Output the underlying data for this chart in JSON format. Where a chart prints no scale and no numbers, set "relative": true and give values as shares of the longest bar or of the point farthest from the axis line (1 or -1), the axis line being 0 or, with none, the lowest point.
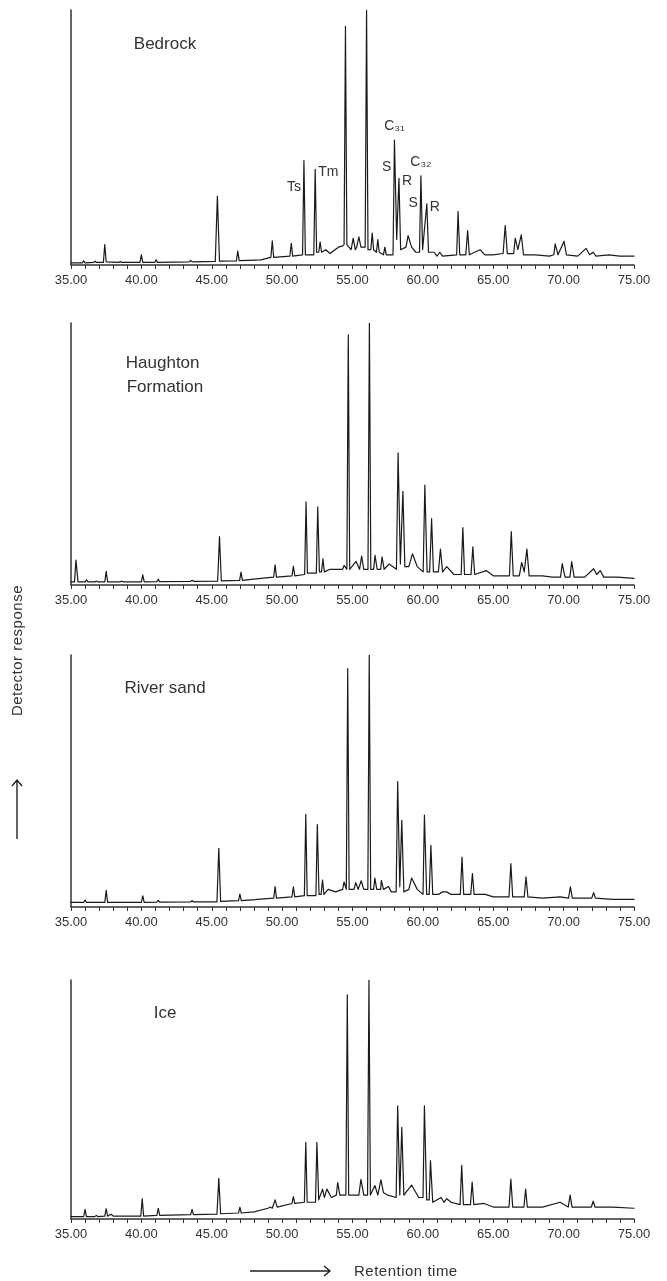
{
  "chart_data": [
    {
      "type": "line",
      "title": "Bedrock",
      "relative": true,
      "color": "#1a1a1a",
      "xlim": [
        35,
        75
      ],
      "xticks": [
        {
          "value": 35,
          "label": "35.00"
        },
        {
          "value": 36,
          "label": null
        },
        {
          "value": 37,
          "label": null
        },
        {
          "value": 38,
          "label": null
        },
        {
          "value": 39,
          "label": null
        },
        {
          "value": 40,
          "label": "40.00"
        },
        {
          "value": 41,
          "label": null
        },
        {
          "value": 42,
          "label": null
        },
        {
          "value": 43,
          "label": null
        },
        {
          "value": 44,
          "label": null
        },
        {
          "value": 45,
          "label": "45.00"
        },
        {
          "value": 46,
          "label": null
        },
        {
          "value": 47,
          "label": null
        },
        {
          "value": 48,
          "label": null
        },
        {
          "value": 49,
          "label": null
        },
        {
          "value": 50,
          "label": "50.00"
        },
        {
          "value": 51,
          "label": null
        },
        {
          "value": 52,
          "label": null
        },
        {
          "value": 53,
          "label": null
        },
        {
          "value": 54,
          "label": null
        },
        {
          "value": 55,
          "label": "55.00"
        },
        {
          "value": 56,
          "label": null
        },
        {
          "value": 57,
          "label": null
        },
        {
          "value": 58,
          "label": null
        },
        {
          "value": 59,
          "label": null
        },
        {
          "value": 60,
          "label": "60.00"
        },
        {
          "value": 61,
          "label": null
        },
        {
          "value": 62,
          "label": null
        },
        {
          "value": 63,
          "label": null
        },
        {
          "value": 64,
          "label": null
        },
        {
          "value": 65,
          "label": "65.00"
        },
        {
          "value": 66,
          "label": null
        },
        {
          "value": 67,
          "label": null
        },
        {
          "value": 68,
          "label": null
        },
        {
          "value": 69,
          "label": null
        },
        {
          "value": 70,
          "label": "70.00"
        },
        {
          "value": 71,
          "label": null
        },
        {
          "value": 72,
          "label": null
        },
        {
          "value": 73,
          "label": null
        },
        {
          "value": 74,
          "label": null
        },
        {
          "value": 75,
          "label": "75.00"
        }
      ],
      "x": [
        35,
        35.8,
        35.9,
        36,
        36.6,
        36.7,
        36.8,
        37.3,
        37.4,
        37.5,
        38.4,
        38.5,
        38.6,
        39.9,
        40,
        40.1,
        40.95,
        41.05,
        41.15,
        43.4,
        43.5,
        43.6,
        45.25,
        45.4,
        45.55,
        46.75,
        46.85,
        46.95,
        48.5,
        49.2,
        49.3,
        49.4,
        50.55,
        50.65,
        50.75,
        51.45,
        51.55,
        51.65,
        52.25,
        52.35,
        52.45,
        52.6,
        52.7,
        52.8,
        53.1,
        53.4,
        54,
        54.3,
        54.4,
        54.5,
        54.6,
        54.9,
        55.05,
        55.2,
        55.3,
        55.45,
        55.6,
        55.9,
        56,
        56.1,
        56.3,
        56.4,
        56.5,
        56.7,
        56.8,
        56.9,
        57.2,
        57.3,
        57.4,
        57.88,
        57.98,
        58.14,
        58.3,
        58.42,
        58.8,
        58.95,
        59.2,
        59.5,
        59.76,
        59.86,
        59.98,
        60.28,
        60.4,
        60.8,
        61,
        61.2,
        61.4,
        62.4,
        62.5,
        62.62,
        63.05,
        63.18,
        63.3,
        64.06,
        64.4,
        65,
        65.7,
        65.85,
        66,
        66.45,
        66.56,
        66.75,
        66.99,
        67.15,
        68,
        69,
        69.3,
        69.4,
        69.6,
        70.03,
        70.2,
        71,
        71.6,
        71.85,
        72.1,
        72.3,
        73.2,
        74,
        75
      ],
      "values": [
        0.008,
        0.008,
        0.016,
        0.008,
        0.01,
        0.015,
        0.01,
        0.01,
        0.08,
        0.012,
        0.01,
        0.014,
        0.01,
        0.01,
        0.04,
        0.01,
        0.01,
        0.02,
        0.01,
        0.012,
        0.018,
        0.012,
        0.014,
        0.27,
        0.015,
        0.016,
        0.055,
        0.017,
        0.02,
        0.03,
        0.095,
        0.03,
        0.035,
        0.085,
        0.035,
        0.04,
        0.41,
        0.04,
        0.04,
        0.375,
        0.05,
        0.05,
        0.09,
        0.05,
        0.06,
        0.045,
        0.07,
        0.075,
        0.08,
        0.936,
        0.08,
        0.06,
        0.105,
        0.06,
        0.07,
        0.11,
        0.07,
        0.07,
        1,
        0.06,
        0.06,
        0.125,
        0.06,
        0.05,
        0.1,
        0.05,
        0.04,
        0.07,
        0.04,
        0.04,
        0.49,
        0.1,
        0.34,
        0.06,
        0.07,
        0.115,
        0.07,
        0.05,
        0.05,
        0.35,
        0.06,
        0.24,
        0.05,
        0.05,
        0.035,
        0.05,
        0.035,
        0.04,
        0.21,
        0.04,
        0.04,
        0.135,
        0.04,
        0.06,
        0.04,
        0.04,
        0.045,
        0.155,
        0.045,
        0.045,
        0.105,
        0.06,
        0.118,
        0.04,
        0.04,
        0.035,
        0.04,
        0.083,
        0.04,
        0.093,
        0.04,
        0.035,
        0.065,
        0.04,
        0.05,
        0.035,
        0.04,
        0.035,
        0.035
      ],
      "annotations": [
        {
          "text": "Ts",
          "x": 51.55,
          "y": 0.41
        },
        {
          "text": "Tm",
          "x": 52.35,
          "y": 0.375
        },
        {
          "text": "C₃₁",
          "x": 57.98,
          "y": 0.49
        },
        {
          "text": "S",
          "x": 57.98,
          "y": 0.49
        },
        {
          "text": "R",
          "x": 58.3,
          "y": 0.34
        },
        {
          "text": "C₃₂",
          "x": 59.86,
          "y": 0.35
        },
        {
          "text": "S",
          "x": 59.86,
          "y": 0.35
        },
        {
          "text": "R",
          "x": 60.28,
          "y": 0.24
        }
      ]
    },
    {
      "type": "line",
      "title": "Haughton Formation",
      "relative": true,
      "color": "#1a1a1a",
      "xlim": [
        35,
        75
      ],
      "xticks": [
        {
          "value": 35,
          "label": "35.00"
        },
        {
          "value": 36,
          "label": null
        },
        {
          "value": 37,
          "label": null
        },
        {
          "value": 38,
          "label": null
        },
        {
          "value": 39,
          "label": null
        },
        {
          "value": 40,
          "label": "40.00"
        },
        {
          "value": 41,
          "label": null
        },
        {
          "value": 42,
          "label": null
        },
        {
          "value": 43,
          "label": null
        },
        {
          "value": 44,
          "label": null
        },
        {
          "value": 45,
          "label": "45.00"
        },
        {
          "value": 46,
          "label": null
        },
        {
          "value": 47,
          "label": null
        },
        {
          "value": 48,
          "label": null
        },
        {
          "value": 49,
          "label": null
        },
        {
          "value": 50,
          "label": "50.00"
        },
        {
          "value": 51,
          "label": null
        },
        {
          "value": 52,
          "label": null
        },
        {
          "value": 53,
          "label": null
        },
        {
          "value": 54,
          "label": null
        },
        {
          "value": 55,
          "label": "55.00"
        },
        {
          "value": 56,
          "label": null
        },
        {
          "value": 57,
          "label": null
        },
        {
          "value": 58,
          "label": null
        },
        {
          "value": 59,
          "label": null
        },
        {
          "value": 60,
          "label": "60.00"
        },
        {
          "value": 61,
          "label": null
        },
        {
          "value": 62,
          "label": null
        },
        {
          "value": 63,
          "label": null
        },
        {
          "value": 64,
          "label": null
        },
        {
          "value": 65,
          "label": "65.00"
        },
        {
          "value": 66,
          "label": null
        },
        {
          "value": 67,
          "label": null
        },
        {
          "value": 68,
          "label": null
        },
        {
          "value": 69,
          "label": null
        },
        {
          "value": 70,
          "label": "70.00"
        },
        {
          "value": 71,
          "label": null
        },
        {
          "value": 72,
          "label": null
        },
        {
          "value": 73,
          "label": null
        },
        {
          "value": 74,
          "label": null
        },
        {
          "value": 75,
          "label": "75.00"
        }
      ],
      "x": [
        35,
        35.25,
        35.35,
        35.5,
        36,
        36.1,
        36.2,
        36.7,
        36.8,
        36.9,
        37.4,
        37.5,
        37.6,
        38.5,
        38.6,
        38.7,
        40,
        40.1,
        40.2,
        41.1,
        41.2,
        41.3,
        43.5,
        43.6,
        43.7,
        45.42,
        45.55,
        45.68,
        46.98,
        47.08,
        47.18,
        48.5,
        49.4,
        49.5,
        49.6,
        50.7,
        50.8,
        50.9,
        51.6,
        51.7,
        51.8,
        52.43,
        52.53,
        52.65,
        52.8,
        52.9,
        53,
        53.4,
        54,
        54.3,
        54.4,
        54.6,
        54.7,
        54.8,
        55.25,
        55.5,
        55.65,
        55.8,
        56.1,
        56.2,
        56.3,
        56.5,
        56.6,
        56.75,
        57,
        57.1,
        57.25,
        57.6,
        58.12,
        58.24,
        58.4,
        58.58,
        58.72,
        59,
        59.26,
        59.6,
        60.02,
        60.14,
        60.3,
        60.48,
        60.62,
        60.75,
        61.1,
        61.25,
        61.4,
        61.7,
        62.2,
        62.72,
        62.84,
        62.96,
        63.42,
        63.55,
        63.68,
        64.5,
        65,
        65.6,
        66.15,
        66.28,
        66.42,
        66.85,
        67.02,
        67.2,
        67.39,
        67.55,
        68.5,
        69.2,
        69.78,
        69.9,
        70.1,
        70.45,
        70.57,
        70.75,
        71.5,
        72.13,
        72.35,
        72.6,
        72.85,
        73.8,
        75
      ],
      "values": [
        0.012,
        0.012,
        0.095,
        0.012,
        0.012,
        0.02,
        0.012,
        0.012,
        0.015,
        0.012,
        0.012,
        0.052,
        0.012,
        0.012,
        0.015,
        0.012,
        0.012,
        0.039,
        0.012,
        0.013,
        0.022,
        0.013,
        0.014,
        0.018,
        0.014,
        0.015,
        0.185,
        0.016,
        0.018,
        0.049,
        0.018,
        0.025,
        0.03,
        0.077,
        0.03,
        0.035,
        0.071,
        0.035,
        0.04,
        0.317,
        0.045,
        0.045,
        0.298,
        0.05,
        0.05,
        0.1,
        0.05,
        0.06,
        0.06,
        0.06,
        0.075,
        0.06,
        0.955,
        0.06,
        0.09,
        0.06,
        0.11,
        0.06,
        0.06,
        1,
        0.06,
        0.06,
        0.113,
        0.06,
        0.06,
        0.107,
        0.06,
        0.08,
        0.06,
        0.504,
        0.08,
        0.357,
        0.07,
        0.07,
        0.119,
        0.07,
        0.05,
        0.381,
        0.05,
        0.05,
        0.253,
        0.05,
        0.05,
        0.137,
        0.05,
        0.07,
        0.04,
        0.04,
        0.219,
        0.04,
        0.04,
        0.146,
        0.04,
        0.055,
        0.035,
        0.035,
        0.035,
        0.204,
        0.035,
        0.035,
        0.086,
        0.05,
        0.137,
        0.035,
        0.035,
        0.03,
        0.03,
        0.082,
        0.03,
        0.03,
        0.089,
        0.03,
        0.03,
        0.062,
        0.04,
        0.055,
        0.03,
        0.03,
        0.025
      ]
    },
    {
      "type": "line",
      "title": "River sand",
      "ylabel": "Detector response",
      "relative": true,
      "color": "#1a1a1a",
      "xlim": [
        35,
        75
      ],
      "xticks": [
        {
          "value": 35,
          "label": "35.00"
        },
        {
          "value": 36,
          "label": null
        },
        {
          "value": 37,
          "label": null
        },
        {
          "value": 38,
          "label": null
        },
        {
          "value": 39,
          "label": null
        },
        {
          "value": 40,
          "label": "40.00"
        },
        {
          "value": 41,
          "label": null
        },
        {
          "value": 42,
          "label": null
        },
        {
          "value": 43,
          "label": null
        },
        {
          "value": 44,
          "label": null
        },
        {
          "value": 45,
          "label": "45.00"
        },
        {
          "value": 46,
          "label": null
        },
        {
          "value": 47,
          "label": null
        },
        {
          "value": 48,
          "label": null
        },
        {
          "value": 49,
          "label": null
        },
        {
          "value": 50,
          "label": "50.00"
        },
        {
          "value": 51,
          "label": null
        },
        {
          "value": 52,
          "label": null
        },
        {
          "value": 53,
          "label": null
        },
        {
          "value": 54,
          "label": null
        },
        {
          "value": 55,
          "label": "55.00"
        },
        {
          "value": 56,
          "label": null
        },
        {
          "value": 57,
          "label": null
        },
        {
          "value": 58,
          "label": null
        },
        {
          "value": 59,
          "label": null
        },
        {
          "value": 60,
          "label": "60.00"
        },
        {
          "value": 61,
          "label": null
        },
        {
          "value": 62,
          "label": null
        },
        {
          "value": 63,
          "label": null
        },
        {
          "value": 64,
          "label": null
        },
        {
          "value": 65,
          "label": "65.00"
        },
        {
          "value": 66,
          "label": null
        },
        {
          "value": 67,
          "label": null
        },
        {
          "value": 68,
          "label": null
        },
        {
          "value": 69,
          "label": null
        },
        {
          "value": 70,
          "label": "70.00"
        },
        {
          "value": 71,
          "label": null
        },
        {
          "value": 72,
          "label": null
        },
        {
          "value": 73,
          "label": null
        },
        {
          "value": 74,
          "label": null
        },
        {
          "value": 75,
          "label": "75.00"
        }
      ],
      "x": [
        35,
        35.9,
        36,
        36.1,
        37.4,
        37.5,
        37.6,
        40,
        40.1,
        40.2,
        41.1,
        41.2,
        41.3,
        43.5,
        43.6,
        43.7,
        45.37,
        45.5,
        45.63,
        46.9,
        47,
        47.1,
        49.4,
        49.5,
        49.6,
        50.7,
        50.8,
        50.9,
        51.58,
        51.68,
        51.78,
        52.4,
        52.5,
        52.62,
        52.77,
        52.87,
        52.97,
        53.27,
        53.8,
        54.3,
        54.4,
        54.56,
        54.66,
        54.76,
        55.1,
        55.23,
        55.4,
        55.62,
        55.8,
        56.09,
        56.19,
        56.29,
        56.5,
        56.59,
        56.72,
        57,
        57.05,
        57.2,
        57.56,
        57.75,
        58.1,
        58.21,
        58.36,
        58.5,
        58.65,
        59,
        59.2,
        59.6,
        60.01,
        60.11,
        60.27,
        60.45,
        60.57,
        60.7,
        61.1,
        61.4,
        61.7,
        62,
        62.66,
        62.78,
        62.9,
        63.4,
        63.52,
        63.64,
        64.43,
        65,
        66.12,
        66.25,
        66.38,
        67.2,
        67.33,
        67.46,
        68.5,
        69.75,
        70.35,
        70.48,
        70.62,
        72,
        72.13,
        72.26,
        73.5,
        75
      ],
      "values": [
        0.018,
        0.018,
        0.028,
        0.018,
        0.018,
        0.066,
        0.018,
        0.018,
        0.044,
        0.018,
        0.019,
        0.026,
        0.019,
        0.02,
        0.025,
        0.02,
        0.02,
        0.233,
        0.022,
        0.025,
        0.051,
        0.025,
        0.035,
        0.081,
        0.035,
        0.04,
        0.08,
        0.04,
        0.045,
        0.368,
        0.045,
        0.045,
        0.327,
        0.05,
        0.05,
        0.107,
        0.05,
        0.07,
        0.06,
        0.07,
        0.1,
        0.07,
        0.946,
        0.07,
        0.07,
        0.097,
        0.07,
        0.104,
        0.07,
        0.07,
        1,
        0.07,
        0.07,
        0.115,
        0.07,
        0.07,
        0.106,
        0.07,
        0.081,
        0.06,
        0.06,
        0.498,
        0.08,
        0.344,
        0.06,
        0.07,
        0.115,
        0.07,
        0.05,
        0.365,
        0.05,
        0.05,
        0.245,
        0.05,
        0.05,
        0.06,
        0.06,
        0.05,
        0.05,
        0.198,
        0.05,
        0.05,
        0.133,
        0.05,
        0.05,
        0.04,
        0.04,
        0.172,
        0.04,
        0.04,
        0.12,
        0.04,
        0.035,
        0.04,
        0.035,
        0.08,
        0.035,
        0.035,
        0.057,
        0.035,
        0.03,
        0.03
      ]
    },
    {
      "type": "line",
      "title": "Ice",
      "xlabel": "Retention time",
      "relative": true,
      "color": "#1a1a1a",
      "xlim": [
        35,
        75
      ],
      "xticks": [
        {
          "value": 35,
          "label": "35.00"
        },
        {
          "value": 36,
          "label": null
        },
        {
          "value": 37,
          "label": null
        },
        {
          "value": 38,
          "label": null
        },
        {
          "value": 39,
          "label": null
        },
        {
          "value": 40,
          "label": "40.00"
        },
        {
          "value": 41,
          "label": null
        },
        {
          "value": 42,
          "label": null
        },
        {
          "value": 43,
          "label": null
        },
        {
          "value": 44,
          "label": null
        },
        {
          "value": 45,
          "label": "45.00"
        },
        {
          "value": 46,
          "label": null
        },
        {
          "value": 47,
          "label": null
        },
        {
          "value": 48,
          "label": null
        },
        {
          "value": 49,
          "label": null
        },
        {
          "value": 50,
          "label": "50.00"
        },
        {
          "value": 51,
          "label": null
        },
        {
          "value": 52,
          "label": null
        },
        {
          "value": 53,
          "label": null
        },
        {
          "value": 54,
          "label": null
        },
        {
          "value": 55,
          "label": "55.00"
        },
        {
          "value": 56,
          "label": null
        },
        {
          "value": 57,
          "label": null
        },
        {
          "value": 58,
          "label": null
        },
        {
          "value": 59,
          "label": null
        },
        {
          "value": 60,
          "label": "60.00"
        },
        {
          "value": 61,
          "label": null
        },
        {
          "value": 62,
          "label": null
        },
        {
          "value": 63,
          "label": null
        },
        {
          "value": 64,
          "label": null
        },
        {
          "value": 65,
          "label": "65.00"
        },
        {
          "value": 66,
          "label": null
        },
        {
          "value": 67,
          "label": null
        },
        {
          "value": 68,
          "label": null
        },
        {
          "value": 69,
          "label": null
        },
        {
          "value": 70,
          "label": "70.00"
        },
        {
          "value": 71,
          "label": null
        },
        {
          "value": 72,
          "label": null
        },
        {
          "value": 73,
          "label": null
        },
        {
          "value": 74,
          "label": null
        },
        {
          "value": 75,
          "label": "75.00"
        }
      ],
      "x": [
        35,
        35.9,
        36,
        36.1,
        36.7,
        36.8,
        36.9,
        37.4,
        37.5,
        37.6,
        37.85,
        38,
        39.96,
        40.06,
        40.16,
        41.1,
        41.2,
        41.3,
        43.5,
        43.6,
        43.7,
        45.37,
        45.5,
        45.63,
        46.9,
        47,
        47.1,
        48,
        49,
        49.15,
        49.3,
        49.5,
        49.65,
        50.7,
        50.8,
        50.9,
        51.58,
        51.68,
        51.78,
        52.37,
        52.47,
        52.6,
        52.87,
        53,
        53.18,
        53.5,
        53.85,
        53.95,
        54.1,
        54.53,
        54.63,
        54.73,
        55.26,
        55.45,
        55.6,
        55.8,
        56.07,
        56.17,
        56.27,
        56.59,
        56.8,
        57.02,
        57.2,
        57.5,
        58.1,
        58.21,
        58.36,
        58.5,
        58.65,
        59.2,
        59.7,
        60.01,
        60.11,
        60.27,
        60.45,
        60.54,
        60.7,
        61.3,
        61.5,
        61.7,
        62,
        62.64,
        62.76,
        62.88,
        63.38,
        63.5,
        63.62,
        64.35,
        65,
        66.12,
        66.25,
        66.38,
        67.18,
        67.3,
        67.42,
        68.5,
        69.75,
        70.33,
        70.46,
        70.6,
        71.97,
        72.1,
        72.23,
        73.5,
        75
      ],
      "values": [
        0.01,
        0.01,
        0.04,
        0.01,
        0.01,
        0.015,
        0.01,
        0.012,
        0.043,
        0.012,
        0.02,
        0.012,
        0.012,
        0.085,
        0.012,
        0.015,
        0.045,
        0.015,
        0.018,
        0.04,
        0.018,
        0.02,
        0.17,
        0.022,
        0.025,
        0.05,
        0.025,
        0.03,
        0.045,
        0.05,
        0.045,
        0.08,
        0.05,
        0.065,
        0.094,
        0.065,
        0.07,
        0.321,
        0.07,
        0.07,
        0.321,
        0.08,
        0.125,
        0.09,
        0.125,
        0.09,
        0.1,
        0.152,
        0.1,
        0.1,
        0.938,
        0.1,
        0.1,
        0.1,
        0.166,
        0.1,
        0.1,
        1,
        0.1,
        0.14,
        0.1,
        0.164,
        0.11,
        0.1,
        0.09,
        0.473,
        0.1,
        0.383,
        0.1,
        0.142,
        0.09,
        0.09,
        0.473,
        0.08,
        0.08,
        0.244,
        0.07,
        0.09,
        0.07,
        0.085,
        0.07,
        0.06,
        0.224,
        0.06,
        0.06,
        0.154,
        0.06,
        0.065,
        0.05,
        0.05,
        0.167,
        0.05,
        0.05,
        0.125,
        0.05,
        0.05,
        0.07,
        0.05,
        0.1,
        0.05,
        0.05,
        0.075,
        0.05,
        0.05,
        0.045
      ]
    }
  ]
}
